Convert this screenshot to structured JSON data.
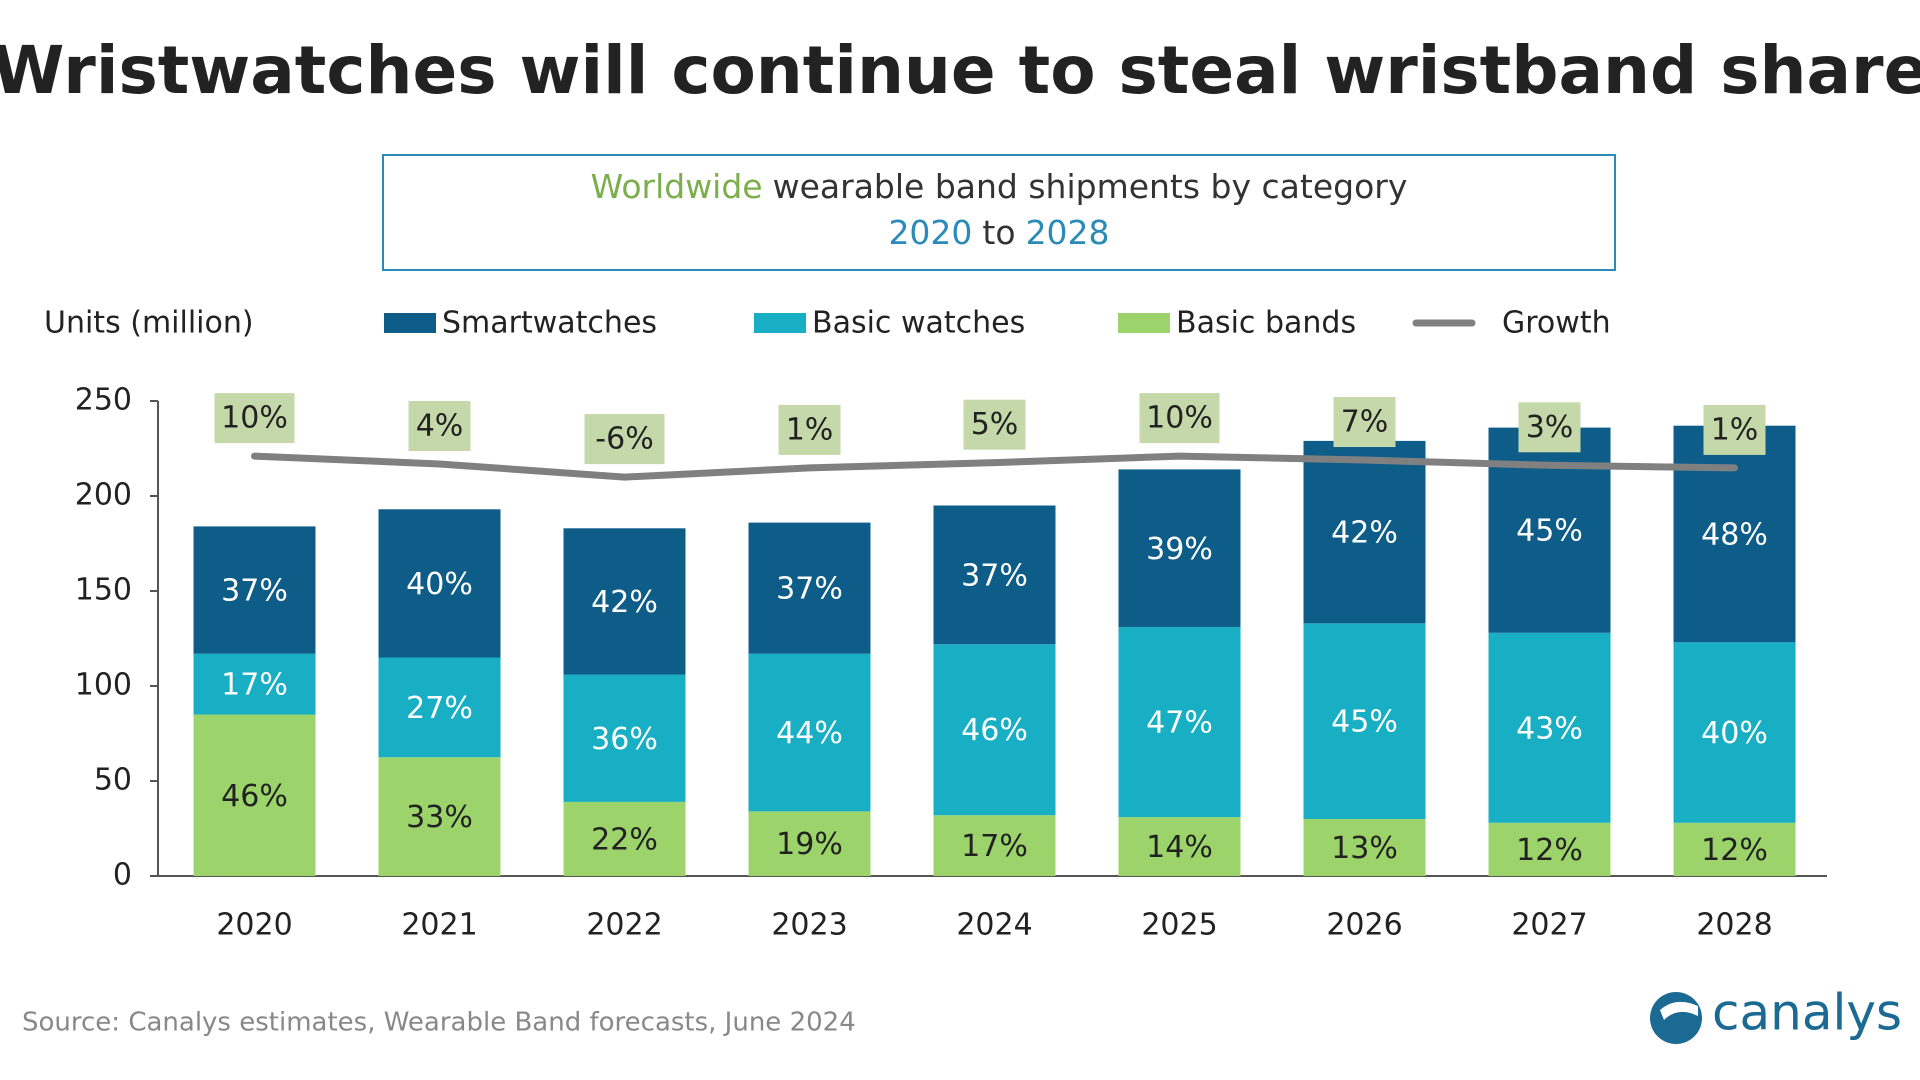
{
  "chart_data": {
    "type": "stacked-bar",
    "title": "Wristwatches will continue to steal wristband share",
    "subtitle": {
      "parts": [
        {
          "text": "Worldwide",
          "color": "#7cae4c"
        },
        {
          "text": "wearable band shipments by category",
          "color": "#333333"
        },
        {
          "text": "2020",
          "color": "#2a8ab8"
        },
        {
          "text": "to",
          "color": "#333333"
        },
        {
          "text": "2028",
          "color": "#2a8ab8"
        }
      ]
    },
    "y_label": "Units (million)",
    "categories": [
      "2020",
      "2021",
      "2022",
      "2023",
      "2024",
      "2025",
      "2026",
      "2027",
      "2028"
    ],
    "series": [
      {
        "name": "Basic bands",
        "color": "#9cd46b",
        "values": [
          85,
          62.5,
          39,
          34,
          32,
          31,
          30,
          28,
          28
        ],
        "share_labels": [
          "46%",
          "33%",
          "22%",
          "19%",
          "17%",
          "14%",
          "13%",
          "12%",
          "12%"
        ]
      },
      {
        "name": "Basic watches",
        "color": "#18afc4",
        "values": [
          32,
          52.5,
          67,
          83,
          90,
          100,
          103,
          100,
          95
        ],
        "share_labels": [
          "17%",
          "27%",
          "36%",
          "44%",
          "46%",
          "47%",
          "45%",
          "43%",
          "40%"
        ]
      },
      {
        "name": "Smartwatches",
        "color": "#0e5c88",
        "values": [
          67,
          78,
          77,
          69,
          73,
          83,
          96,
          108,
          114
        ],
        "share_labels": [
          "37%",
          "40%",
          "42%",
          "37%",
          "37%",
          "39%",
          "42%",
          "45%",
          "48%"
        ]
      },
      {
        "name": "Growth",
        "type": "line",
        "axis": "y2",
        "color": "#808080",
        "values": [
          10,
          4,
          -6,
          1,
          5,
          10,
          7,
          3,
          1
        ],
        "value_labels": [
          "10%",
          "4%",
          "-6%",
          "1%",
          "5%",
          "10%",
          "7%",
          "3%",
          "1%"
        ],
        "label_box_color": "#c5d8a9"
      }
    ],
    "legend_order": [
      2,
      1,
      0,
      3
    ],
    "ylim": [
      0,
      250
    ],
    "yticks": [
      0,
      50,
      100,
      150,
      200,
      250
    ],
    "y2lim": [
      -310,
      52
    ],
    "source": "Source:  Canalys estimates, Wearable Band forecasts, June 2024",
    "brand": "canalys"
  }
}
